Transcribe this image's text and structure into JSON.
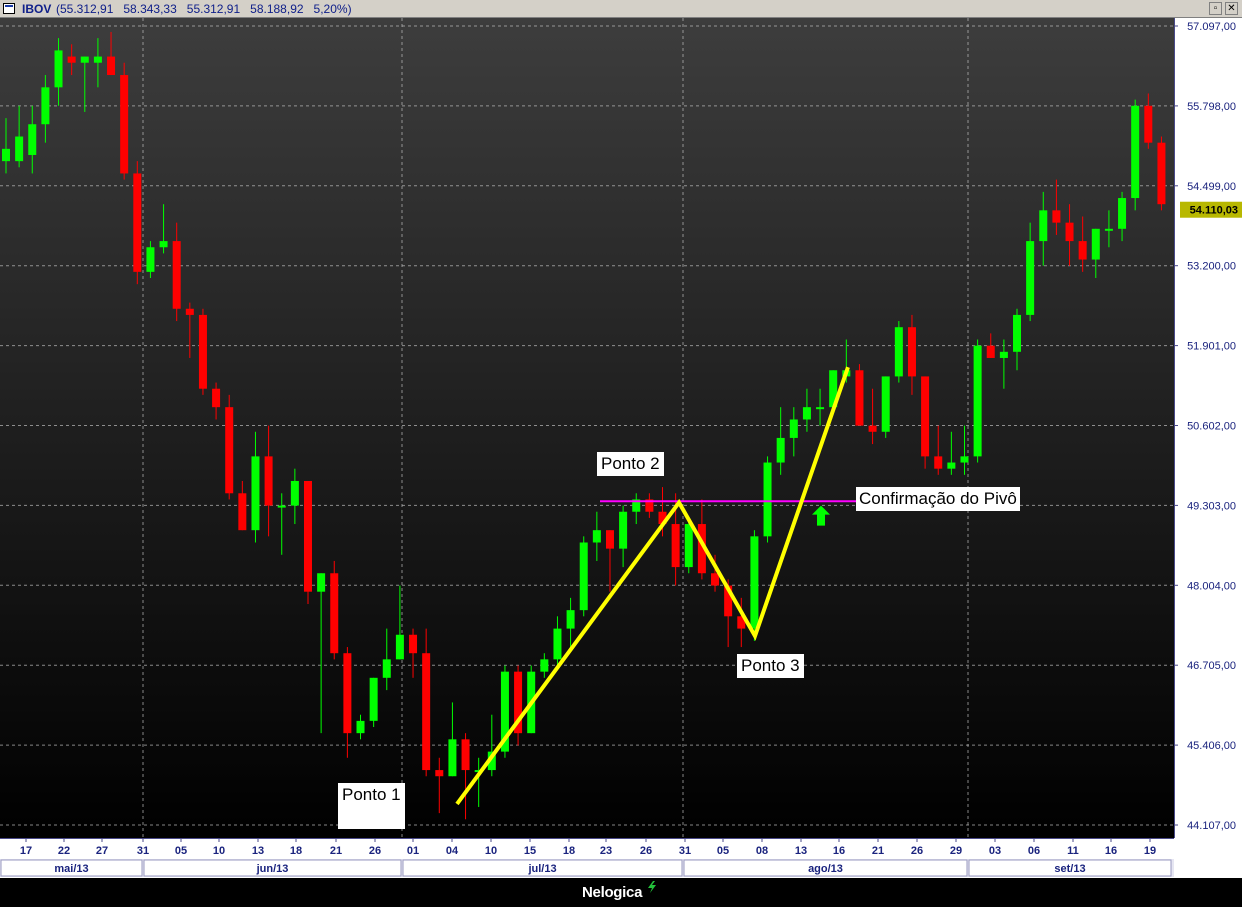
{
  "window": {
    "symbol": "IBOV",
    "values": "(55.312,91   58.343,33   55.312,91   58.188,92   5,20%)",
    "buttons": [
      "minimize-button",
      "maximize-button",
      "close-button"
    ]
  },
  "colors": {
    "background": "#000000",
    "up_candle": "#00ff00",
    "down_candle": "#ff0000",
    "trend_line": "#ffff00",
    "pivot_line": "#ff00ff",
    "arrow": "#00ff00",
    "axis_text": "#1a237e",
    "axis_bg": "#ffffff",
    "last_price_bg": "#b8b800"
  },
  "chart_data": {
    "type": "candlestick",
    "title": "",
    "xlabel": "",
    "ylabel": "",
    "ylim": [
      44000,
      57300
    ],
    "grid": true,
    "y_ticks": [
      "57.097,00",
      "55.798,00",
      "54.499,00",
      "53.200,00",
      "51.901,00",
      "50.602,00",
      "49.303,00",
      "48.004,00",
      "46.705,00",
      "45.406,00",
      "44.107,00"
    ],
    "last_price": "54.110,03",
    "day_ticks": [
      "17",
      "22",
      "27",
      "31",
      "05",
      "10",
      "13",
      "18",
      "21",
      "26",
      "01",
      "04",
      "10",
      "15",
      "18",
      "23",
      "26",
      "31",
      "05",
      "08",
      "13",
      "16",
      "21",
      "26",
      "29",
      "03",
      "06",
      "11",
      "16",
      "19"
    ],
    "month_labels": [
      "mai/13",
      "jun/13",
      "jul/13",
      "ago/13",
      "set/13"
    ],
    "ohlc": [
      [
        54.9,
        55.6,
        54.7,
        55.1
      ],
      [
        54.9,
        55.8,
        54.8,
        55.3
      ],
      [
        55.0,
        55.8,
        54.7,
        55.5
      ],
      [
        55.5,
        56.3,
        55.2,
        56.1
      ],
      [
        56.1,
        56.9,
        55.8,
        56.7
      ],
      [
        56.6,
        56.8,
        56.3,
        56.5
      ],
      [
        56.5,
        56.6,
        55.7,
        56.6
      ],
      [
        56.5,
        56.9,
        56.1,
        56.6
      ],
      [
        56.6,
        57.0,
        56.3,
        56.3
      ],
      [
        56.3,
        56.5,
        54.6,
        54.7
      ],
      [
        54.7,
        54.9,
        52.9,
        53.1
      ],
      [
        53.1,
        53.6,
        53.0,
        53.5
      ],
      [
        53.5,
        54.2,
        53.4,
        53.6
      ],
      [
        53.6,
        53.9,
        52.3,
        52.5
      ],
      [
        52.5,
        52.6,
        51.7,
        52.4
      ],
      [
        52.4,
        52.5,
        51.1,
        51.2
      ],
      [
        51.2,
        51.3,
        50.7,
        50.9
      ],
      [
        50.9,
        51.1,
        49.4,
        49.5
      ],
      [
        49.5,
        49.7,
        48.9,
        48.9
      ],
      [
        48.9,
        50.5,
        48.7,
        50.1
      ],
      [
        50.1,
        50.6,
        48.8,
        49.3
      ],
      [
        49.3,
        49.5,
        48.5,
        49.3
      ],
      [
        49.3,
        49.9,
        49.0,
        49.7
      ],
      [
        49.7,
        49.7,
        47.7,
        47.9
      ],
      [
        47.9,
        48.2,
        45.6,
        48.2
      ],
      [
        48.2,
        48.4,
        46.8,
        46.9
      ],
      [
        46.9,
        47.0,
        45.2,
        45.6
      ],
      [
        45.6,
        45.9,
        45.5,
        45.8
      ],
      [
        45.8,
        46.5,
        45.7,
        46.5
      ],
      [
        46.5,
        47.3,
        46.3,
        46.8
      ],
      [
        46.8,
        48.0,
        46.8,
        47.2
      ],
      [
        47.2,
        47.3,
        46.5,
        46.9
      ],
      [
        46.9,
        47.3,
        44.9,
        45.0
      ],
      [
        45.0,
        45.2,
        44.3,
        44.9
      ],
      [
        44.9,
        46.1,
        44.9,
        45.5
      ],
      [
        45.5,
        45.6,
        44.2,
        45.0
      ],
      [
        45.0,
        45.2,
        44.4,
        45.0
      ],
      [
        45.0,
        45.9,
        44.9,
        45.3
      ],
      [
        45.3,
        46.7,
        45.2,
        46.6
      ],
      [
        46.6,
        46.7,
        45.4,
        45.6
      ],
      [
        45.6,
        46.7,
        45.6,
        46.6
      ],
      [
        46.6,
        46.9,
        46.5,
        46.8
      ],
      [
        46.8,
        47.5,
        46.7,
        47.3
      ],
      [
        47.3,
        47.8,
        47.0,
        47.6
      ],
      [
        47.6,
        48.8,
        47.5,
        48.7
      ],
      [
        48.7,
        49.2,
        48.4,
        48.9
      ],
      [
        48.9,
        48.9,
        47.9,
        48.6
      ],
      [
        48.6,
        49.3,
        48.3,
        49.2
      ],
      [
        49.2,
        49.5,
        49.0,
        49.4
      ],
      [
        49.4,
        49.5,
        49.1,
        49.2
      ],
      [
        49.2,
        49.6,
        48.8,
        49.0
      ],
      [
        49.0,
        49.5,
        48.0,
        48.3
      ],
      [
        48.3,
        49.1,
        48.2,
        49.0
      ],
      [
        49.0,
        49.4,
        48.1,
        48.2
      ],
      [
        48.2,
        48.5,
        47.9,
        48.0
      ],
      [
        48.0,
        48.1,
        47.0,
        47.5
      ],
      [
        47.5,
        47.8,
        47.0,
        47.3
      ],
      [
        47.3,
        48.9,
        47.1,
        48.8
      ],
      [
        48.8,
        50.1,
        48.7,
        50.0
      ],
      [
        50.0,
        50.9,
        49.8,
        50.4
      ],
      [
        50.4,
        50.9,
        50.1,
        50.7
      ],
      [
        50.7,
        51.2,
        50.5,
        50.9
      ],
      [
        50.9,
        51.2,
        50.6,
        50.9
      ],
      [
        50.9,
        51.5,
        50.9,
        51.5
      ],
      [
        51.4,
        52.0,
        51.3,
        51.5
      ],
      [
        51.5,
        51.6,
        50.6,
        50.6
      ],
      [
        50.6,
        51.2,
        50.3,
        50.5
      ],
      [
        50.5,
        51.4,
        50.4,
        51.4
      ],
      [
        51.4,
        52.3,
        51.3,
        52.2
      ],
      [
        52.2,
        52.4,
        51.1,
        51.4
      ],
      [
        51.4,
        51.4,
        49.9,
        50.1
      ],
      [
        50.1,
        50.6,
        49.8,
        49.9
      ],
      [
        49.9,
        50.5,
        49.8,
        50.0
      ],
      [
        50.0,
        50.6,
        49.8,
        50.1
      ],
      [
        50.1,
        52.0,
        50.0,
        51.9
      ],
      [
        51.9,
        52.1,
        51.7,
        51.7
      ],
      [
        51.7,
        52.0,
        51.2,
        51.8
      ],
      [
        51.8,
        52.5,
        51.5,
        52.4
      ],
      [
        52.4,
        53.9,
        52.3,
        53.6
      ],
      [
        53.6,
        54.4,
        53.2,
        54.1
      ],
      [
        54.1,
        54.6,
        53.7,
        53.9
      ],
      [
        53.9,
        54.2,
        53.2,
        53.6
      ],
      [
        53.6,
        54.0,
        53.1,
        53.3
      ],
      [
        53.3,
        53.8,
        53.0,
        53.8
      ],
      [
        53.8,
        54.1,
        53.5,
        53.8
      ],
      [
        53.8,
        54.4,
        53.6,
        54.3
      ],
      [
        54.3,
        55.9,
        54.1,
        55.8
      ],
      [
        55.8,
        56.0,
        55.1,
        55.2
      ],
      [
        55.2,
        55.3,
        54.1,
        54.2
      ]
    ],
    "annotations": {
      "ponto1": "Ponto 1",
      "ponto2": "Ponto 2",
      "ponto3": "Ponto 3",
      "pivot": "Confirmação do Pivô"
    }
  },
  "footer": {
    "brand": "Nelogica"
  }
}
